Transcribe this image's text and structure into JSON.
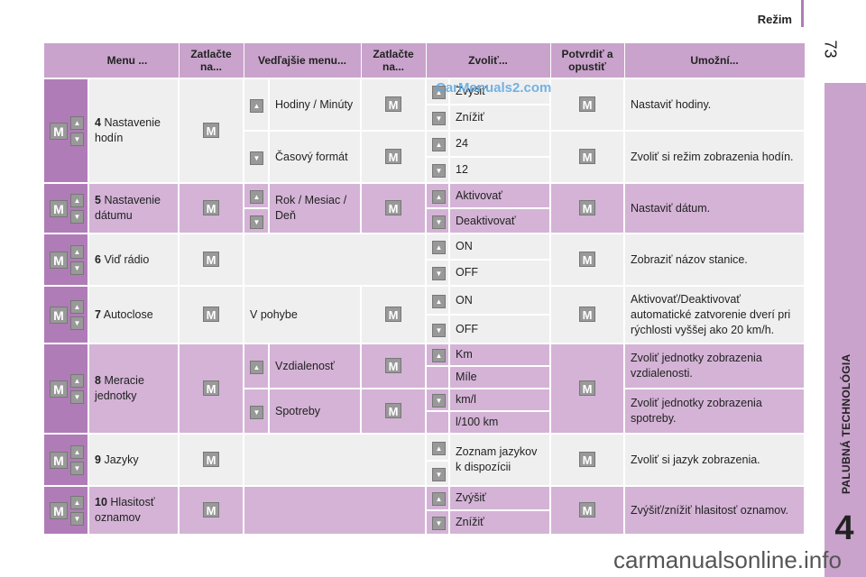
{
  "header": {
    "title": "Režim",
    "page_number": "73"
  },
  "side_tab": {
    "label": "PALUBNÁ TECHNOLÓGIA",
    "chapter": "4"
  },
  "table": {
    "columns": [
      "Menu ...",
      "Zatlačte na...",
      "Vedľajšie menu...",
      "Zatlačte na...",
      "Zvoliť...",
      "Potvrdiť a opustiť",
      "Umožní..."
    ],
    "rows": {
      "r4": {
        "num": "4",
        "label": "Nastavenie hodín",
        "sub1": "Hodiny / Minúty",
        "opt1a": "Zvýšiť",
        "opt1b": "Znížiť",
        "res1": "Nastaviť hodiny.",
        "sub2": "Časový formát",
        "opt2a": "24",
        "opt2b": "12",
        "res2": "Zvoliť si režim zobrazenia hodín."
      },
      "r5": {
        "num": "5",
        "label": "Nastavenie dátumu",
        "sub": "Rok / Mesiac / Deň",
        "opta": "Aktivovať",
        "optb": "Deaktivovať",
        "res": "Nastaviť dátum."
      },
      "r6": {
        "num": "6",
        "label": "Viď rádio",
        "opta": "ON",
        "optb": "OFF",
        "res": "Zobraziť názov stanice."
      },
      "r7": {
        "num": "7",
        "label": "Autoclose",
        "sub": "V pohybe",
        "opta": "ON",
        "optb": "OFF",
        "res": "Aktivovať/Deaktivovať automatické zatvorenie dverí pri rýchlosti vyššej ako 20 km/h."
      },
      "r8": {
        "num": "8",
        "label": "Meracie jednotky",
        "sub1": "Vzdialenosť",
        "opt1a": "Km",
        "opt1b": "Míle",
        "res1": "Zvoliť jednotky zobrazenia vzdialenosti.",
        "sub2": "Spotreby",
        "opt2a": "km/l",
        "opt2b": "l/100 km",
        "res2": "Zvoliť jednotky zobrazenia spotreby."
      },
      "r9": {
        "num": "9",
        "label": "Jazyky",
        "opta": "Zoznam jazykov k dispozícii",
        "res": "Zvoliť si jazyk zobrazenia."
      },
      "r10": {
        "num": "10",
        "label": "Hlasitosť oznamov",
        "opta": "Zvýšiť",
        "optb": "Znížiť",
        "res": "Zvýšiť/znížiť hlasitosť oznamov."
      }
    }
  },
  "keys": {
    "m": "M",
    "up": "▲",
    "down": "▼"
  },
  "watermarks": {
    "top": "CarManuals2.com",
    "bottom": "carmanualsonline.info"
  }
}
